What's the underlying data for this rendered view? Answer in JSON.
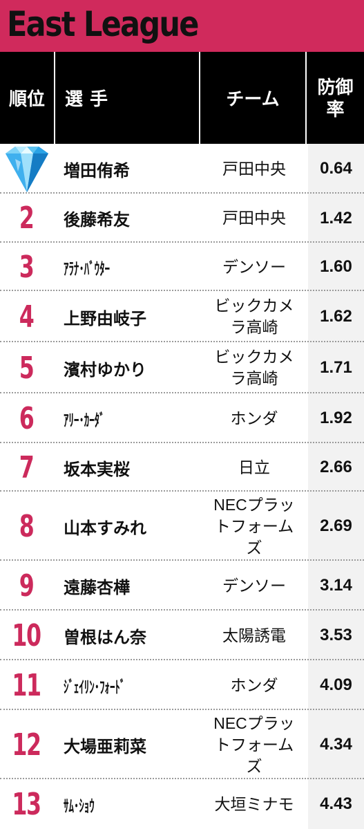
{
  "title": "East League",
  "headers": {
    "rank": "順位",
    "player": "選手",
    "team": "チーム",
    "era": "防御率"
  },
  "rows": [
    {
      "rank": "",
      "rank_icon": "diamond-icon",
      "player": "増田侑希",
      "team": "戸田中央",
      "era": "0.64"
    },
    {
      "rank": "2",
      "player": "後藤希友",
      "team": "戸田中央",
      "era": "1.42"
    },
    {
      "rank": "3",
      "player": "ｱﾗﾅ･ﾊﾞｳﾀｰ",
      "team": "デンソー",
      "era": "1.60"
    },
    {
      "rank": "4",
      "player": "上野由岐子",
      "team": "ビックカメラ高崎",
      "era": "1.62"
    },
    {
      "rank": "5",
      "player": "濱村ゆかり",
      "team": "ビックカメラ高崎",
      "era": "1.71"
    },
    {
      "rank": "6",
      "player": "ｱﾘｰ･ｶｰﾀﾞ",
      "team": "ホンダ",
      "era": "1.92"
    },
    {
      "rank": "7",
      "player": "坂本実桜",
      "team": "日立",
      "era": "2.66"
    },
    {
      "rank": "8",
      "player": "山本すみれ",
      "team": "NECプラットフォームズ",
      "era": "2.69"
    },
    {
      "rank": "9",
      "player": "遠藤杏樺",
      "team": "デンソー",
      "era": "3.14"
    },
    {
      "rank": "10",
      "player": "曽根はん奈",
      "team": "太陽誘電",
      "era": "3.53"
    },
    {
      "rank": "11",
      "player": "ｼﾞｪｲﾘﾝ･ﾌｫｰﾄﾞ",
      "team": "ホンダ",
      "era": "4.09"
    },
    {
      "rank": "12",
      "player": "大場亜莉菜",
      "team": "NECプラットフォームズ",
      "era": "4.34"
    },
    {
      "rank": "13",
      "player": "ｻﾑ･ｼｮｳ",
      "team": "大垣ミナモ",
      "era": "4.43"
    }
  ],
  "colors": {
    "accent": "#d02a5c",
    "rank_text": "#cc2a5c",
    "header_bg": "#000000",
    "era_bg": "#f2f2f2"
  }
}
